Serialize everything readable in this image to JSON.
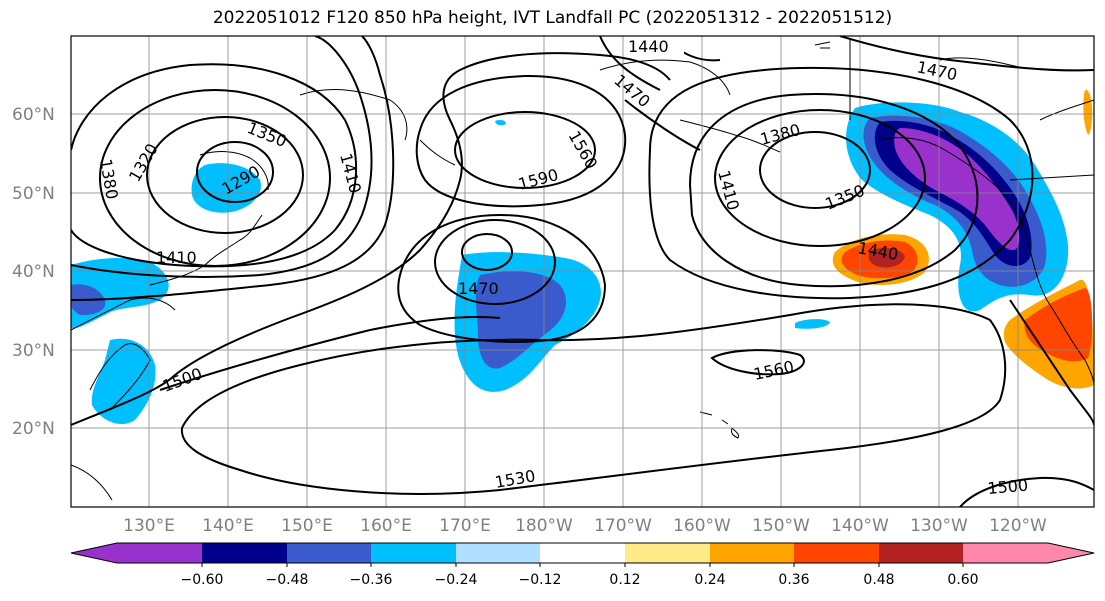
{
  "title": "2022051012 F120 850 hPa height, IVT Landfall PC (2022051312 - 2022051512)",
  "lat_labels": [
    "60°N",
    "50°N",
    "40°N",
    "30°N",
    "20°N"
  ],
  "lon_labels": [
    "130°E",
    "140°E",
    "150°E",
    "160°E",
    "170°E",
    "180°W",
    "170°W",
    "160°W",
    "150°W",
    "140°W",
    "130°W",
    "120°W"
  ],
  "contour_labels": [
    "1440",
    "1470",
    "1470",
    "1350",
    "1320",
    "1380",
    "1290",
    "1410",
    "1590",
    "1560",
    "1380",
    "1410",
    "1350",
    "1440",
    "1410",
    "1470",
    "1500",
    "1560",
    "1530",
    "1500"
  ],
  "colorbar": {
    "ticks": [
      "−0.60",
      "−0.48",
      "−0.36",
      "−0.24",
      "−0.12",
      "0.12",
      "0.24",
      "0.36",
      "0.48",
      "0.60"
    ],
    "colors": [
      "#9932CC",
      "#00008B",
      "#3A5BCC",
      "#00BFFF",
      "#B0E0FF",
      "#FFFFFF",
      "#FFEB88",
      "#FFA500",
      "#FF4500",
      "#B22222",
      "#FF88AA"
    ]
  }
}
